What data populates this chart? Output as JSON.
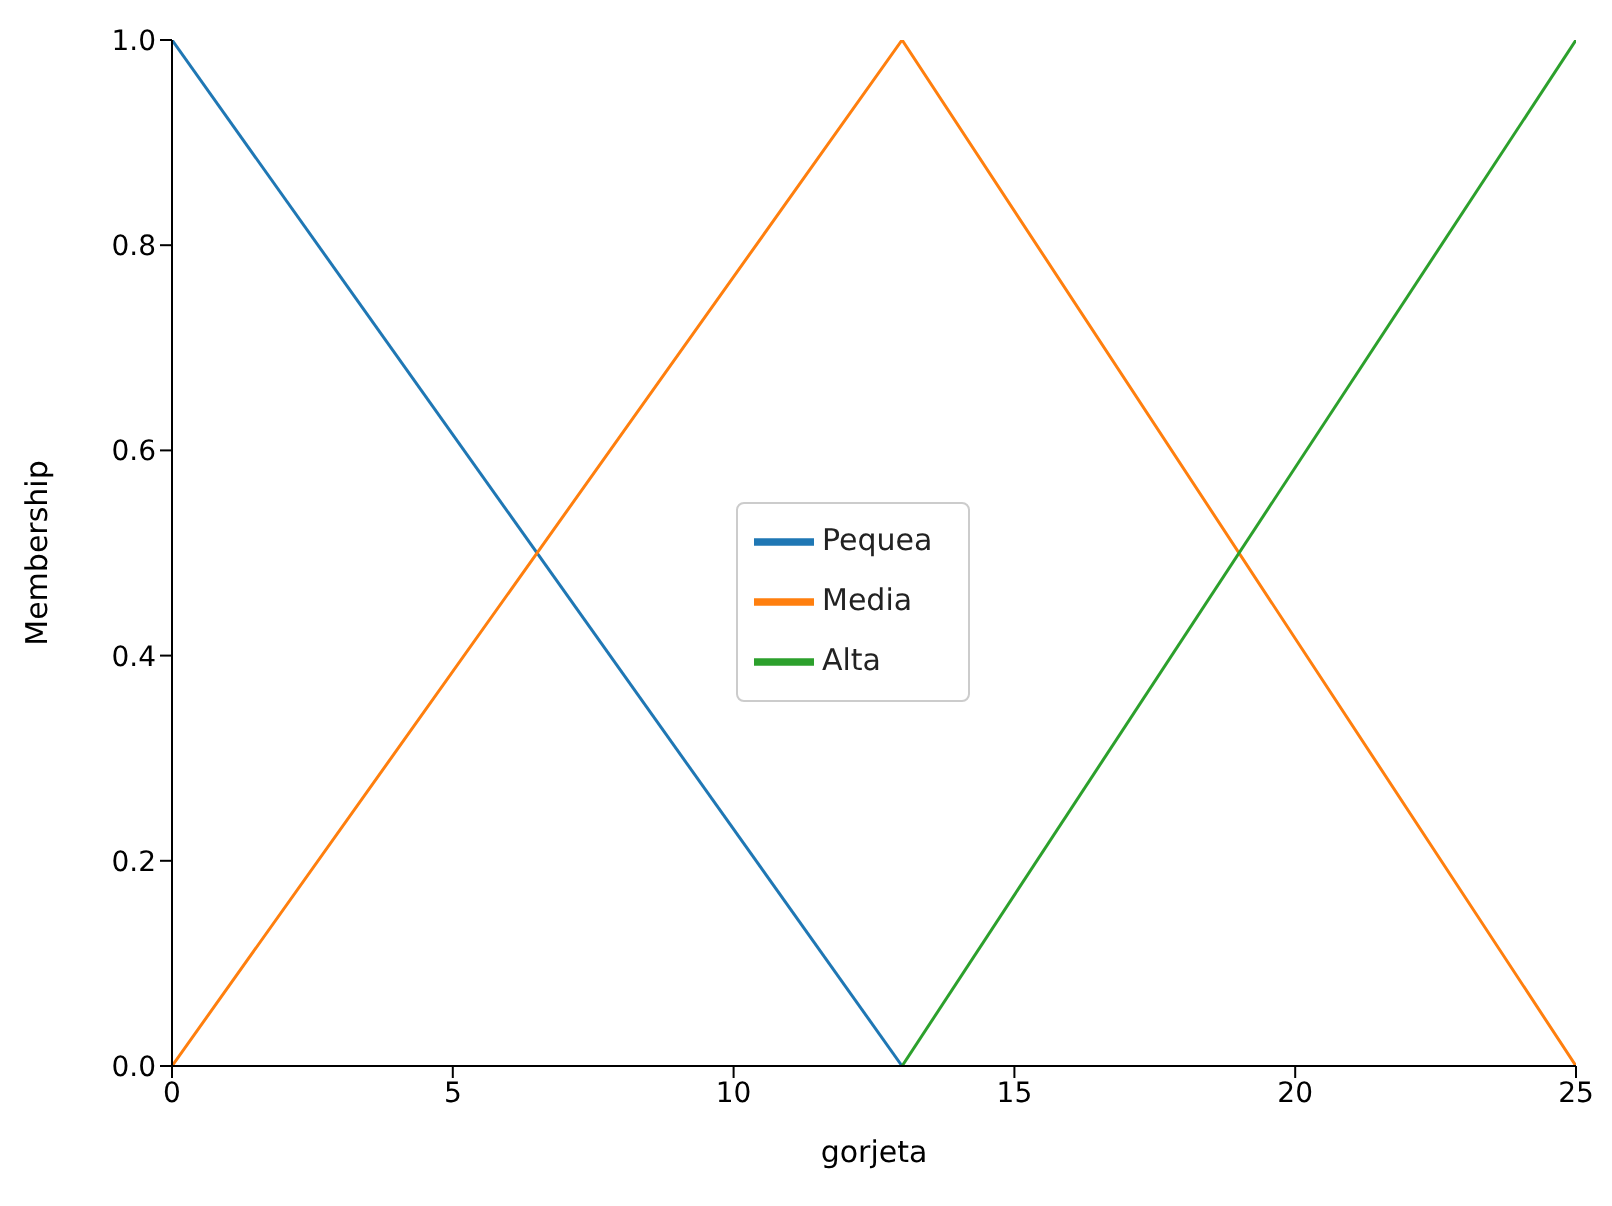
{
  "chart_data": {
    "type": "line",
    "xlabel": "gorjeta",
    "ylabel": "Membership",
    "xlim": [
      0,
      25
    ],
    "ylim": [
      0,
      1
    ],
    "xticks": [
      0,
      5,
      10,
      15,
      20,
      25
    ],
    "yticks": [
      {
        "value": 0,
        "label": "0.0"
      },
      {
        "value": 0.2,
        "label": "0.2"
      },
      {
        "value": 0.4,
        "label": "0.4"
      },
      {
        "value": 0.6,
        "label": "0.6"
      },
      {
        "value": 0.8,
        "label": "0.8"
      },
      {
        "value": 1,
        "label": "1.0"
      }
    ],
    "grid": false,
    "legend": "center",
    "marker": "none",
    "line_style": "solid",
    "series": [
      {
        "name": "Pequea",
        "color": "#1f77b4",
        "x": [
          0,
          13
        ],
        "values": [
          1,
          0
        ]
      },
      {
        "name": "Media",
        "color": "#ff7f0e",
        "x": [
          0,
          13,
          25
        ],
        "values": [
          0,
          1,
          0
        ]
      },
      {
        "name": "Alta",
        "color": "#2ca02c",
        "x": [
          13,
          25
        ],
        "values": [
          0,
          1
        ]
      }
    ]
  }
}
